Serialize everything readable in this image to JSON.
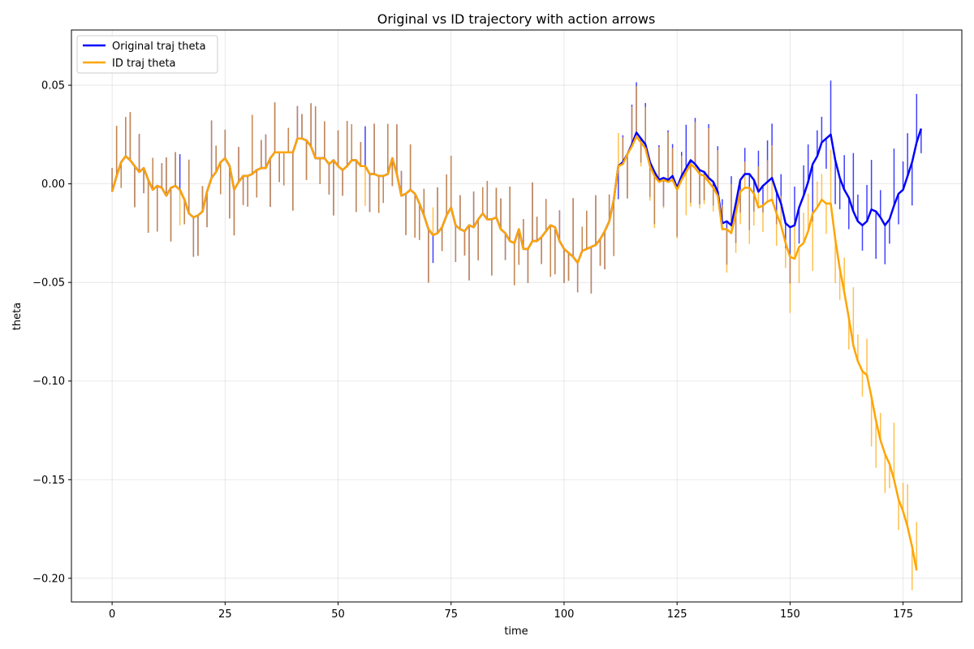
{
  "chart_data": {
    "type": "line",
    "title": "Original vs ID trajectory with action arrows",
    "xlabel": "time",
    "ylabel": "theta",
    "xlim": [
      -9,
      188
    ],
    "ylim": [
      -0.212,
      0.078
    ],
    "xticks": [
      0,
      25,
      50,
      75,
      100,
      125,
      150,
      175
    ],
    "yticks": [
      0.05,
      0.0,
      -0.05,
      -0.1,
      -0.15,
      -0.2
    ],
    "ytick_labels": [
      "0.05",
      "0.00",
      "−0.05",
      "−0.10",
      "−0.15",
      "−0.20"
    ],
    "xtick_labels": [
      "0",
      "25",
      "50",
      "75",
      "100",
      "125",
      "150",
      "175"
    ],
    "grid": true,
    "legend_position": "top-left",
    "series": [
      {
        "name": "Original traj theta",
        "color": "#0000ff",
        "x_start": 0,
        "values": [
          -0.004,
          0.004,
          0.011,
          0.014,
          0.012,
          0.009,
          0.006,
          0.008,
          0.002,
          -0.003,
          -0.001,
          -0.002,
          -0.006,
          -0.002,
          -0.001,
          -0.003,
          -0.008,
          -0.015,
          -0.017,
          -0.016,
          -0.014,
          -0.004,
          0.003,
          0.006,
          0.011,
          0.013,
          0.009,
          -0.003,
          0.001,
          0.004,
          0.004,
          0.005,
          0.007,
          0.008,
          0.008,
          0.013,
          0.016,
          0.016,
          0.016,
          0.016,
          0.016,
          0.023,
          0.023,
          0.022,
          0.019,
          0.013,
          0.013,
          0.013,
          0.01,
          0.012,
          0.009,
          0.007,
          0.009,
          0.012,
          0.012,
          0.009,
          0.009,
          0.005,
          0.005,
          0.004,
          0.004,
          0.005,
          0.013,
          0.005,
          -0.006,
          -0.005,
          -0.003,
          -0.005,
          -0.01,
          -0.016,
          -0.023,
          -0.026,
          -0.025,
          -0.022,
          -0.016,
          -0.012,
          -0.021,
          -0.023,
          -0.024,
          -0.021,
          -0.022,
          -0.018,
          -0.015,
          -0.018,
          -0.018,
          -0.017,
          -0.023,
          -0.025,
          -0.029,
          -0.03,
          -0.023,
          -0.033,
          -0.033,
          -0.029,
          -0.029,
          -0.027,
          -0.024,
          -0.021,
          -0.022,
          -0.029,
          -0.033,
          -0.035,
          -0.037,
          -0.04,
          -0.034,
          -0.033,
          -0.032,
          -0.031,
          -0.028,
          -0.024,
          -0.019,
          -0.008,
          0.009,
          0.011,
          0.015,
          0.02,
          0.026,
          0.023,
          0.02,
          0.011,
          0.006,
          0.002,
          0.003,
          0.002,
          0.004,
          -0.002,
          0.004,
          0.008,
          0.012,
          0.01,
          0.007,
          0.006,
          0.003,
          0.001,
          -0.004,
          -0.02,
          -0.019,
          -0.021,
          -0.01,
          0.002,
          0.005,
          0.005,
          0.002,
          -0.004,
          -0.001,
          0.001,
          0.003,
          -0.004,
          -0.01,
          -0.02,
          -0.022,
          -0.021,
          -0.012,
          -0.006,
          0.001,
          0.01,
          0.014,
          0.021,
          0.023,
          0.025,
          0.012,
          0.003,
          -0.003,
          -0.007,
          -0.014,
          -0.019,
          -0.021,
          -0.019,
          -0.013,
          -0.014,
          -0.017,
          -0.021,
          -0.018,
          -0.011,
          -0.005,
          -0.003,
          0.004,
          0.011,
          0.021,
          0.028
        ]
      },
      {
        "name": "ID traj theta",
        "color": "#ffa500",
        "x_start": 0,
        "values": [
          -0.004,
          0.004,
          0.011,
          0.014,
          0.012,
          0.009,
          0.006,
          0.008,
          0.002,
          -0.003,
          -0.001,
          -0.002,
          -0.006,
          -0.002,
          -0.001,
          -0.003,
          -0.008,
          -0.015,
          -0.017,
          -0.016,
          -0.014,
          -0.004,
          0.003,
          0.006,
          0.011,
          0.013,
          0.009,
          -0.003,
          0.001,
          0.004,
          0.004,
          0.005,
          0.007,
          0.008,
          0.008,
          0.013,
          0.016,
          0.016,
          0.016,
          0.016,
          0.016,
          0.023,
          0.023,
          0.022,
          0.019,
          0.013,
          0.013,
          0.013,
          0.01,
          0.012,
          0.009,
          0.007,
          0.009,
          0.012,
          0.012,
          0.009,
          0.009,
          0.005,
          0.005,
          0.004,
          0.004,
          0.005,
          0.013,
          0.005,
          -0.006,
          -0.005,
          -0.003,
          -0.005,
          -0.01,
          -0.016,
          -0.023,
          -0.026,
          -0.025,
          -0.022,
          -0.016,
          -0.012,
          -0.021,
          -0.023,
          -0.024,
          -0.021,
          -0.022,
          -0.018,
          -0.015,
          -0.018,
          -0.018,
          -0.017,
          -0.023,
          -0.025,
          -0.029,
          -0.03,
          -0.023,
          -0.033,
          -0.033,
          -0.029,
          -0.029,
          -0.027,
          -0.024,
          -0.021,
          -0.022,
          -0.029,
          -0.033,
          -0.035,
          -0.037,
          -0.04,
          -0.034,
          -0.033,
          -0.032,
          -0.031,
          -0.028,
          -0.024,
          -0.019,
          -0.008,
          0.009,
          0.01,
          0.015,
          0.019,
          0.024,
          0.021,
          0.018,
          0.009,
          0.004,
          0.001,
          0.002,
          0.001,
          0.002,
          -0.003,
          0.002,
          0.006,
          0.01,
          0.008,
          0.005,
          0.004,
          0.001,
          -0.002,
          -0.006,
          -0.023,
          -0.023,
          -0.025,
          -0.015,
          -0.004,
          -0.002,
          -0.002,
          -0.005,
          -0.012,
          -0.011,
          -0.009,
          -0.008,
          -0.015,
          -0.021,
          -0.03,
          -0.037,
          -0.038,
          -0.032,
          -0.03,
          -0.024,
          -0.015,
          -0.012,
          -0.008,
          -0.01,
          -0.01,
          -0.028,
          -0.043,
          -0.055,
          -0.068,
          -0.082,
          -0.09,
          -0.095,
          -0.097,
          -0.108,
          -0.12,
          -0.13,
          -0.137,
          -0.142,
          -0.15,
          -0.16,
          -0.166,
          -0.174,
          -0.184,
          -0.196
        ]
      }
    ]
  }
}
